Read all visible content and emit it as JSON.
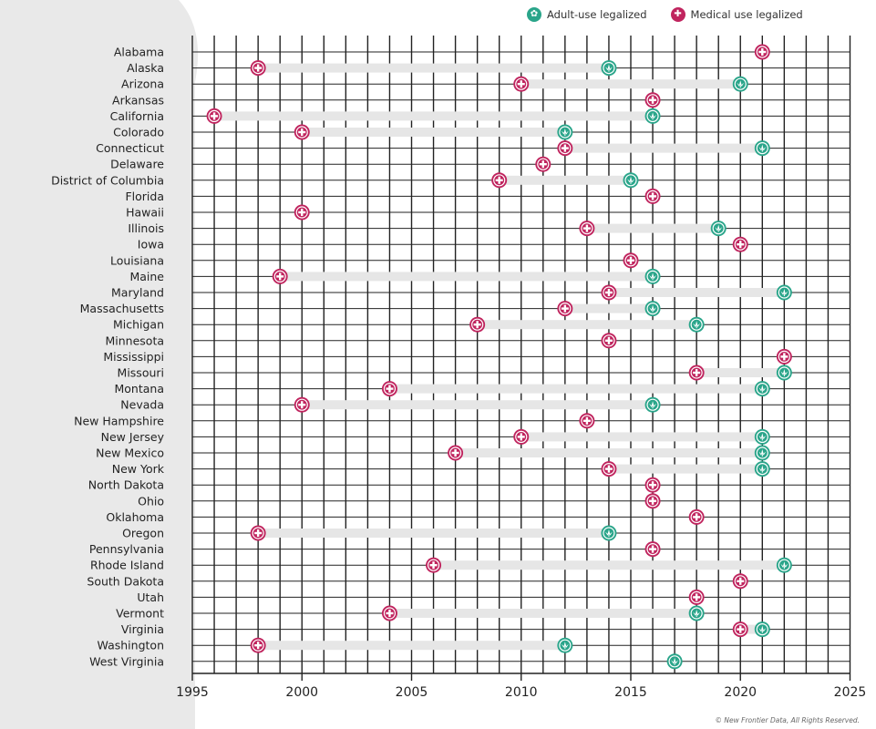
{
  "legend": {
    "adult_label": "Adult-use legalized",
    "medical_label": "Medical use legalized"
  },
  "colors": {
    "adult": "#2aa58a",
    "medical": "#c0245e",
    "bar": "#e6e6e6",
    "grid": "#222222",
    "left_panel": "#e9e9e9"
  },
  "credit": "© New Frontier Data, All Rights Reserved.",
  "chart_data": {
    "type": "scatter",
    "x_ticks": [
      1995,
      2000,
      2005,
      2010,
      2015,
      2020,
      2025
    ],
    "xlim": [
      1995,
      2025
    ],
    "grid": "vertical yearly lines and horizontal row lines",
    "legend_position": "top-right",
    "states": [
      {
        "name": "Alabama",
        "medical": 2021,
        "adult": null
      },
      {
        "name": "Alaska",
        "medical": 1998,
        "adult": 2014
      },
      {
        "name": "Arizona",
        "medical": 2010,
        "adult": 2020
      },
      {
        "name": "Arkansas",
        "medical": 2016,
        "adult": null
      },
      {
        "name": "California",
        "medical": 1996,
        "adult": 2016
      },
      {
        "name": "Colorado",
        "medical": 2000,
        "adult": 2012
      },
      {
        "name": "Connecticut",
        "medical": 2012,
        "adult": 2021
      },
      {
        "name": "Delaware",
        "medical": 2011,
        "adult": null
      },
      {
        "name": "District of Columbia",
        "medical": 2009,
        "adult": 2015
      },
      {
        "name": "Florida",
        "medical": 2016,
        "adult": null
      },
      {
        "name": "Hawaii",
        "medical": 2000,
        "adult": null
      },
      {
        "name": "Illinois",
        "medical": 2013,
        "adult": 2019
      },
      {
        "name": "Iowa",
        "medical": 2020,
        "adult": null
      },
      {
        "name": "Louisiana",
        "medical": 2015,
        "adult": null
      },
      {
        "name": "Maine",
        "medical": 1999,
        "adult": 2016
      },
      {
        "name": "Maryland",
        "medical": 2014,
        "adult": 2022
      },
      {
        "name": "Massachusetts",
        "medical": 2012,
        "adult": 2016
      },
      {
        "name": "Michigan",
        "medical": 2008,
        "adult": 2018
      },
      {
        "name": "Minnesota",
        "medical": 2014,
        "adult": null
      },
      {
        "name": "Mississippi",
        "medical": 2022,
        "adult": null
      },
      {
        "name": "Missouri",
        "medical": 2018,
        "adult": 2022
      },
      {
        "name": "Montana",
        "medical": 2004,
        "adult": 2021
      },
      {
        "name": "Nevada",
        "medical": 2000,
        "adult": 2016
      },
      {
        "name": "New Hampshire",
        "medical": 2013,
        "adult": null
      },
      {
        "name": "New Jersey",
        "medical": 2010,
        "adult": 2021
      },
      {
        "name": "New Mexico",
        "medical": 2007,
        "adult": 2021
      },
      {
        "name": "New York",
        "medical": 2014,
        "adult": 2021
      },
      {
        "name": "North Dakota",
        "medical": 2016,
        "adult": null
      },
      {
        "name": "Ohio",
        "medical": 2016,
        "adult": null
      },
      {
        "name": "Oklahoma",
        "medical": 2018,
        "adult": null
      },
      {
        "name": "Oregon",
        "medical": 1998,
        "adult": 2014
      },
      {
        "name": "Pennsylvania",
        "medical": 2016,
        "adult": null
      },
      {
        "name": "Rhode Island",
        "medical": 2006,
        "adult": 2022
      },
      {
        "name": "South Dakota",
        "medical": 2020,
        "adult": null
      },
      {
        "name": "Utah",
        "medical": 2018,
        "adult": null
      },
      {
        "name": "Vermont",
        "medical": 2004,
        "adult": 2018
      },
      {
        "name": "Virginia",
        "medical": 2020,
        "adult": 2021
      },
      {
        "name": "Washington",
        "medical": 1998,
        "adult": 2012
      },
      {
        "name": "West Virginia",
        "medical": null,
        "adult": 2017
      }
    ]
  }
}
